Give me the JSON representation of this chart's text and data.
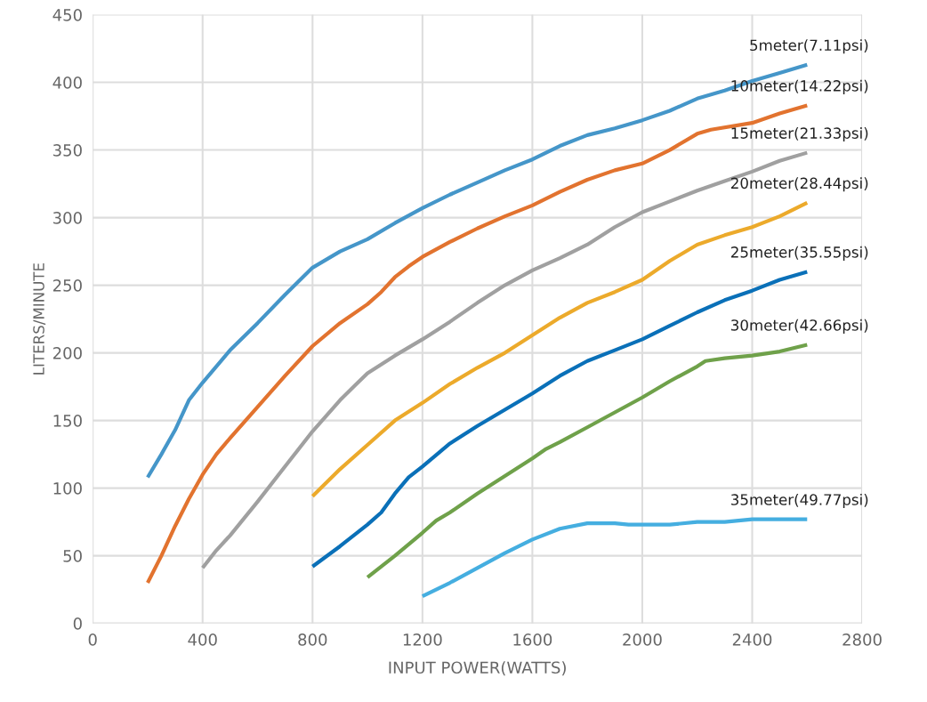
{
  "chart_data": {
    "type": "line",
    "xlabel": "INPUT POWER(WATTS)",
    "ylabel": "LITERS/MINUTE",
    "xlim": [
      0,
      2800
    ],
    "xticks": [
      0,
      400,
      800,
      1200,
      1600,
      2000,
      2400,
      2800
    ],
    "ylim": [
      0,
      450
    ],
    "yticks": [
      0,
      50,
      100,
      150,
      200,
      250,
      300,
      350,
      400,
      450
    ],
    "grid": true,
    "legend": false,
    "marker": "none",
    "line_style": "solid",
    "series": [
      {
        "name": "5meter(7.11psi)",
        "color": "#4596c9",
        "x": [
          200,
          250,
          300,
          350,
          400,
          500,
          600,
          700,
          800,
          900,
          1000,
          1100,
          1200,
          1300,
          1400,
          1500,
          1600,
          1700,
          1800,
          1900,
          2000,
          2100,
          2200,
          2300,
          2400,
          2500,
          2600
        ],
        "values": [
          108,
          125,
          143,
          165,
          178,
          202,
          222,
          243,
          263,
          275,
          284,
          296,
          307,
          317,
          326,
          335,
          343,
          353,
          361,
          366,
          372,
          379,
          388,
          394,
          401,
          407,
          413
        ]
      },
      {
        "name": "10meter(14.22psi)",
        "color": "#e2732f",
        "x": [
          200,
          250,
          300,
          350,
          400,
          450,
          500,
          600,
          700,
          800,
          900,
          1000,
          1050,
          1100,
          1150,
          1200,
          1300,
          1400,
          1500,
          1600,
          1700,
          1800,
          1900,
          2000,
          2100,
          2200,
          2250,
          2400,
          2500,
          2600
        ],
        "values": [
          30,
          50,
          72,
          92,
          110,
          125,
          137,
          160,
          183,
          205,
          222,
          236,
          245,
          256,
          264,
          271,
          282,
          292,
          301,
          309,
          319,
          328,
          335,
          340,
          350,
          362,
          365,
          370,
          377,
          383
        ]
      },
      {
        "name": "15meter(21.33psi)",
        "color": "#a0a0a0",
        "x": [
          400,
          450,
          500,
          600,
          700,
          800,
          900,
          950,
          1000,
          1100,
          1200,
          1300,
          1400,
          1500,
          1600,
          1700,
          1800,
          1900,
          2000,
          2100,
          2200,
          2300,
          2400,
          2500,
          2600
        ],
        "values": [
          41,
          54,
          65,
          90,
          116,
          142,
          165,
          175,
          185,
          198,
          210,
          223,
          237,
          250,
          261,
          270,
          280,
          293,
          304,
          312,
          320,
          327,
          334,
          342,
          348
        ]
      },
      {
        "name": "20meter(28.44psi)",
        "color": "#ecaa2b",
        "x": [
          800,
          900,
          1000,
          1100,
          1200,
          1300,
          1400,
          1500,
          1600,
          1700,
          1800,
          1900,
          2000,
          2100,
          2200,
          2300,
          2400,
          2500,
          2600
        ],
        "values": [
          94,
          114,
          132,
          150,
          163,
          177,
          189,
          200,
          213,
          226,
          237,
          245,
          254,
          268,
          280,
          287,
          293,
          301,
          311
        ]
      },
      {
        "name": "25meter(35.55psi)",
        "color": "#0a70b8",
        "x": [
          800,
          900,
          1000,
          1050,
          1100,
          1150,
          1200,
          1300,
          1400,
          1500,
          1600,
          1700,
          1800,
          1900,
          2000,
          2100,
          2200,
          2300,
          2400,
          2500,
          2600
        ],
        "values": [
          42,
          57,
          73,
          82,
          96,
          108,
          116,
          133,
          146,
          158,
          170,
          183,
          194,
          202,
          210,
          220,
          230,
          239,
          246,
          254,
          260
        ]
      },
      {
        "name": "30meter(42.66psi)",
        "color": "#6fa14a",
        "x": [
          1000,
          1100,
          1200,
          1250,
          1300,
          1400,
          1500,
          1600,
          1650,
          1700,
          1800,
          1900,
          2000,
          2100,
          2200,
          2230,
          2300,
          2400,
          2500,
          2600
        ],
        "values": [
          34,
          50,
          67,
          76,
          82,
          96,
          109,
          122,
          129,
          134,
          145,
          156,
          167,
          179,
          190,
          194,
          196,
          198,
          201,
          206
        ]
      },
      {
        "name": "35meter(49.77psi)",
        "color": "#45aee0",
        "x": [
          1200,
          1300,
          1400,
          1500,
          1600,
          1700,
          1800,
          1900,
          1950,
          2100,
          2200,
          2300,
          2350,
          2400,
          2600
        ],
        "values": [
          20,
          30,
          41,
          52,
          62,
          70,
          74,
          74,
          73,
          73,
          75,
          75,
          76,
          77,
          77
        ]
      }
    ]
  }
}
